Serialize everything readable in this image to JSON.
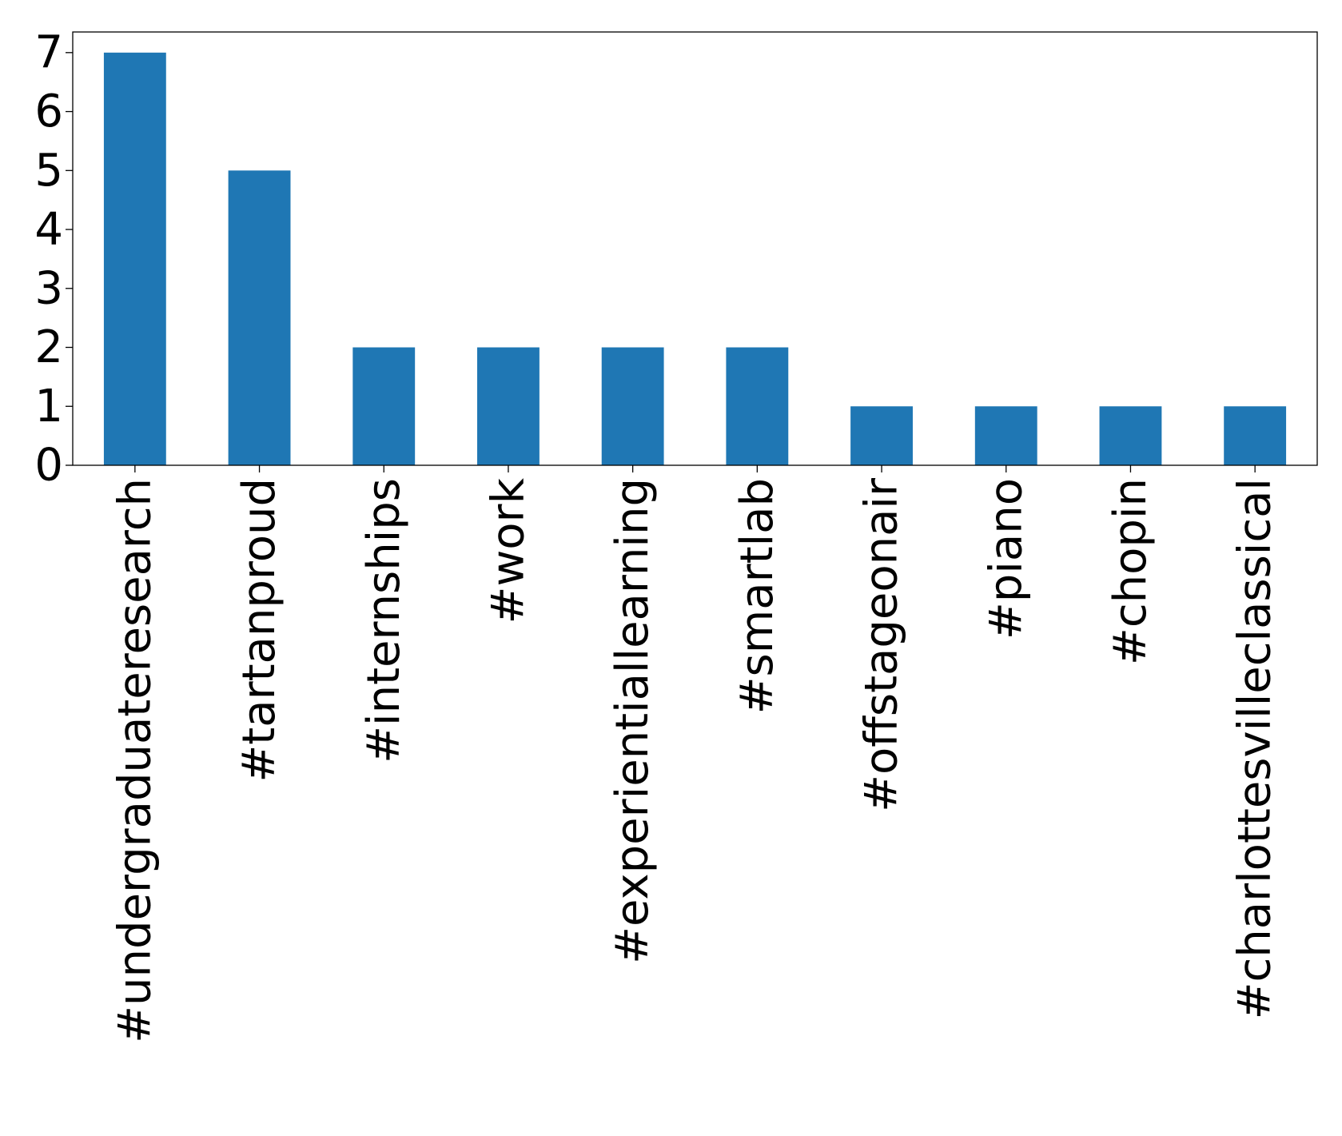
{
  "chart_data": {
    "type": "bar",
    "title": "",
    "xlabel": "",
    "ylabel": "",
    "categories": [
      "#undergraduateresearch",
      "#tartanproud",
      "#internships",
      "#work",
      "#experientiallearning",
      "#smartlab",
      "#offstageonair",
      "#piano",
      "#chopin",
      "#charlottesvilleclassical"
    ],
    "values": [
      7,
      5,
      2,
      2,
      2,
      2,
      1,
      1,
      1,
      1
    ],
    "yticks": [
      0,
      1,
      2,
      3,
      4,
      5,
      6,
      7
    ],
    "ylim": [
      0,
      7.35
    ],
    "grid": false,
    "legend": "none",
    "bar_color": "#1f77b4"
  }
}
